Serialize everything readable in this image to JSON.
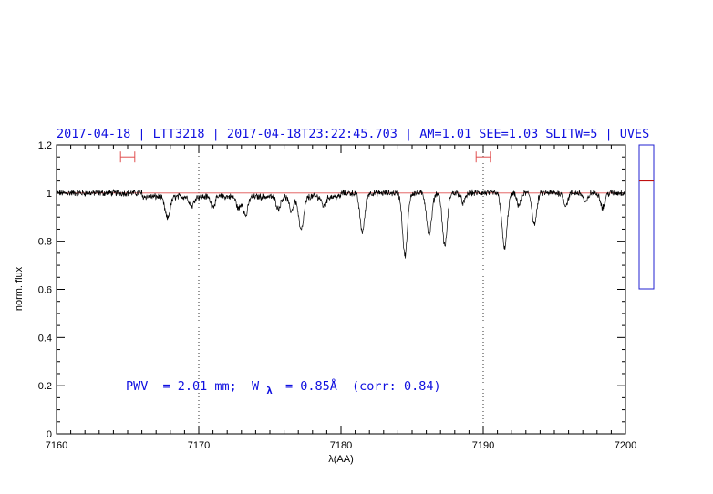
{
  "chart_data": {
    "type": "line",
    "title": "2017-04-18 | LTT3218 | 2017-04-18T23:22:45.703 | AM=1.01  SEE=1.03  SLITW=5 | UVES",
    "xlabel": "λ(AA)",
    "ylabel": "norm. flux",
    "xlim": [
      7160,
      7200
    ],
    "ylim": [
      0,
      1.2
    ],
    "x_ticks": [
      "7160",
      "7170",
      "7180",
      "7190",
      "7200"
    ],
    "y_ticks": [
      "0",
      "0.2",
      "0.4",
      "0.6",
      "0.8",
      "1",
      "1.2"
    ],
    "annotation": {
      "pwv_label": "PWV",
      "pwv_value": "= 2.01 mm;",
      "w_symbol": "W",
      "w_subscript": "λ",
      "w_value": "= 0.85Å",
      "corr": "(corr: 0.84)"
    },
    "continuum_level": 1.0,
    "dotted_lines_x": [
      7170,
      7190
    ],
    "continuum_windows": [
      [
        7164.5,
        7165.5
      ],
      [
        7189.5,
        7190.5
      ]
    ],
    "continuum_window_y": 1.15,
    "absorption_lines": [
      {
        "x": 7167.8,
        "depth": 0.09,
        "width": 0.18
      },
      {
        "x": 7169.5,
        "depth": 0.04,
        "width": 0.15
      },
      {
        "x": 7171.0,
        "depth": 0.04,
        "width": 0.15
      },
      {
        "x": 7172.8,
        "depth": 0.05,
        "width": 0.15
      },
      {
        "x": 7173.3,
        "depth": 0.08,
        "width": 0.15
      },
      {
        "x": 7175.6,
        "depth": 0.05,
        "width": 0.15
      },
      {
        "x": 7176.5,
        "depth": 0.06,
        "width": 0.15
      },
      {
        "x": 7177.2,
        "depth": 0.14,
        "width": 0.18
      },
      {
        "x": 7178.8,
        "depth": 0.04,
        "width": 0.15
      },
      {
        "x": 7181.5,
        "depth": 0.16,
        "width": 0.17
      },
      {
        "x": 7184.5,
        "depth": 0.26,
        "width": 0.17
      },
      {
        "x": 7186.2,
        "depth": 0.17,
        "width": 0.18
      },
      {
        "x": 7187.3,
        "depth": 0.22,
        "width": 0.17
      },
      {
        "x": 7188.6,
        "depth": 0.04,
        "width": 0.15
      },
      {
        "x": 7191.5,
        "depth": 0.23,
        "width": 0.18
      },
      {
        "x": 7192.5,
        "depth": 0.05,
        "width": 0.15
      },
      {
        "x": 7193.6,
        "depth": 0.13,
        "width": 0.16
      },
      {
        "x": 7195.8,
        "depth": 0.05,
        "width": 0.15
      },
      {
        "x": 7197.2,
        "depth": 0.04,
        "width": 0.15
      },
      {
        "x": 7198.4,
        "depth": 0.06,
        "width": 0.15
      }
    ],
    "side_gauge": {
      "ylim": [
        0,
        1
      ],
      "marker": 0.75
    }
  }
}
